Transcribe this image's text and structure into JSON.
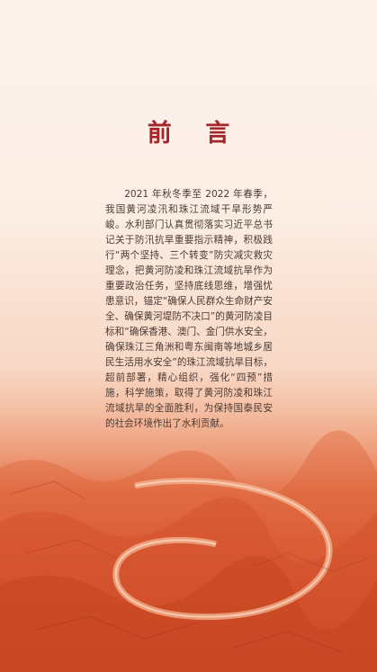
{
  "document": {
    "title": "前 言",
    "body": "2021 年秋冬季至 2022 年春季，我国黄河凌汛和珠江流域干旱形势严峻。水利部门认真贯彻落实习近平总书记关于防汛抗旱重要指示精神，积极践行“两个坚持、三个转变”防灾减灾救灾理念，把黄河防凌和珠江流域抗旱作为重要政治任务，坚持底线思维，增强忧患意识，锚定“确保人民群众生命财产安全、确保黄河堤防不决口”的黄河防凌目标和“确保香港、澳门、金门供水安全，确保珠江三角洲和粤东闽南等地城乡居民生活用水安全”的珠江流域抗旱目标，超前部署，精心组织，强化“四预”措施，科学施策，取得了黄河防凌和珠江流域抗旱的全面胜利，为保持国泰民安的社会环境作出了水利贡献。"
  },
  "colors": {
    "title": "#a5252a",
    "text": "#4a3a34",
    "background_top": "#fdf3ec",
    "background_bottom": "#c8472a"
  },
  "background_image": "river-terrain-aerial"
}
